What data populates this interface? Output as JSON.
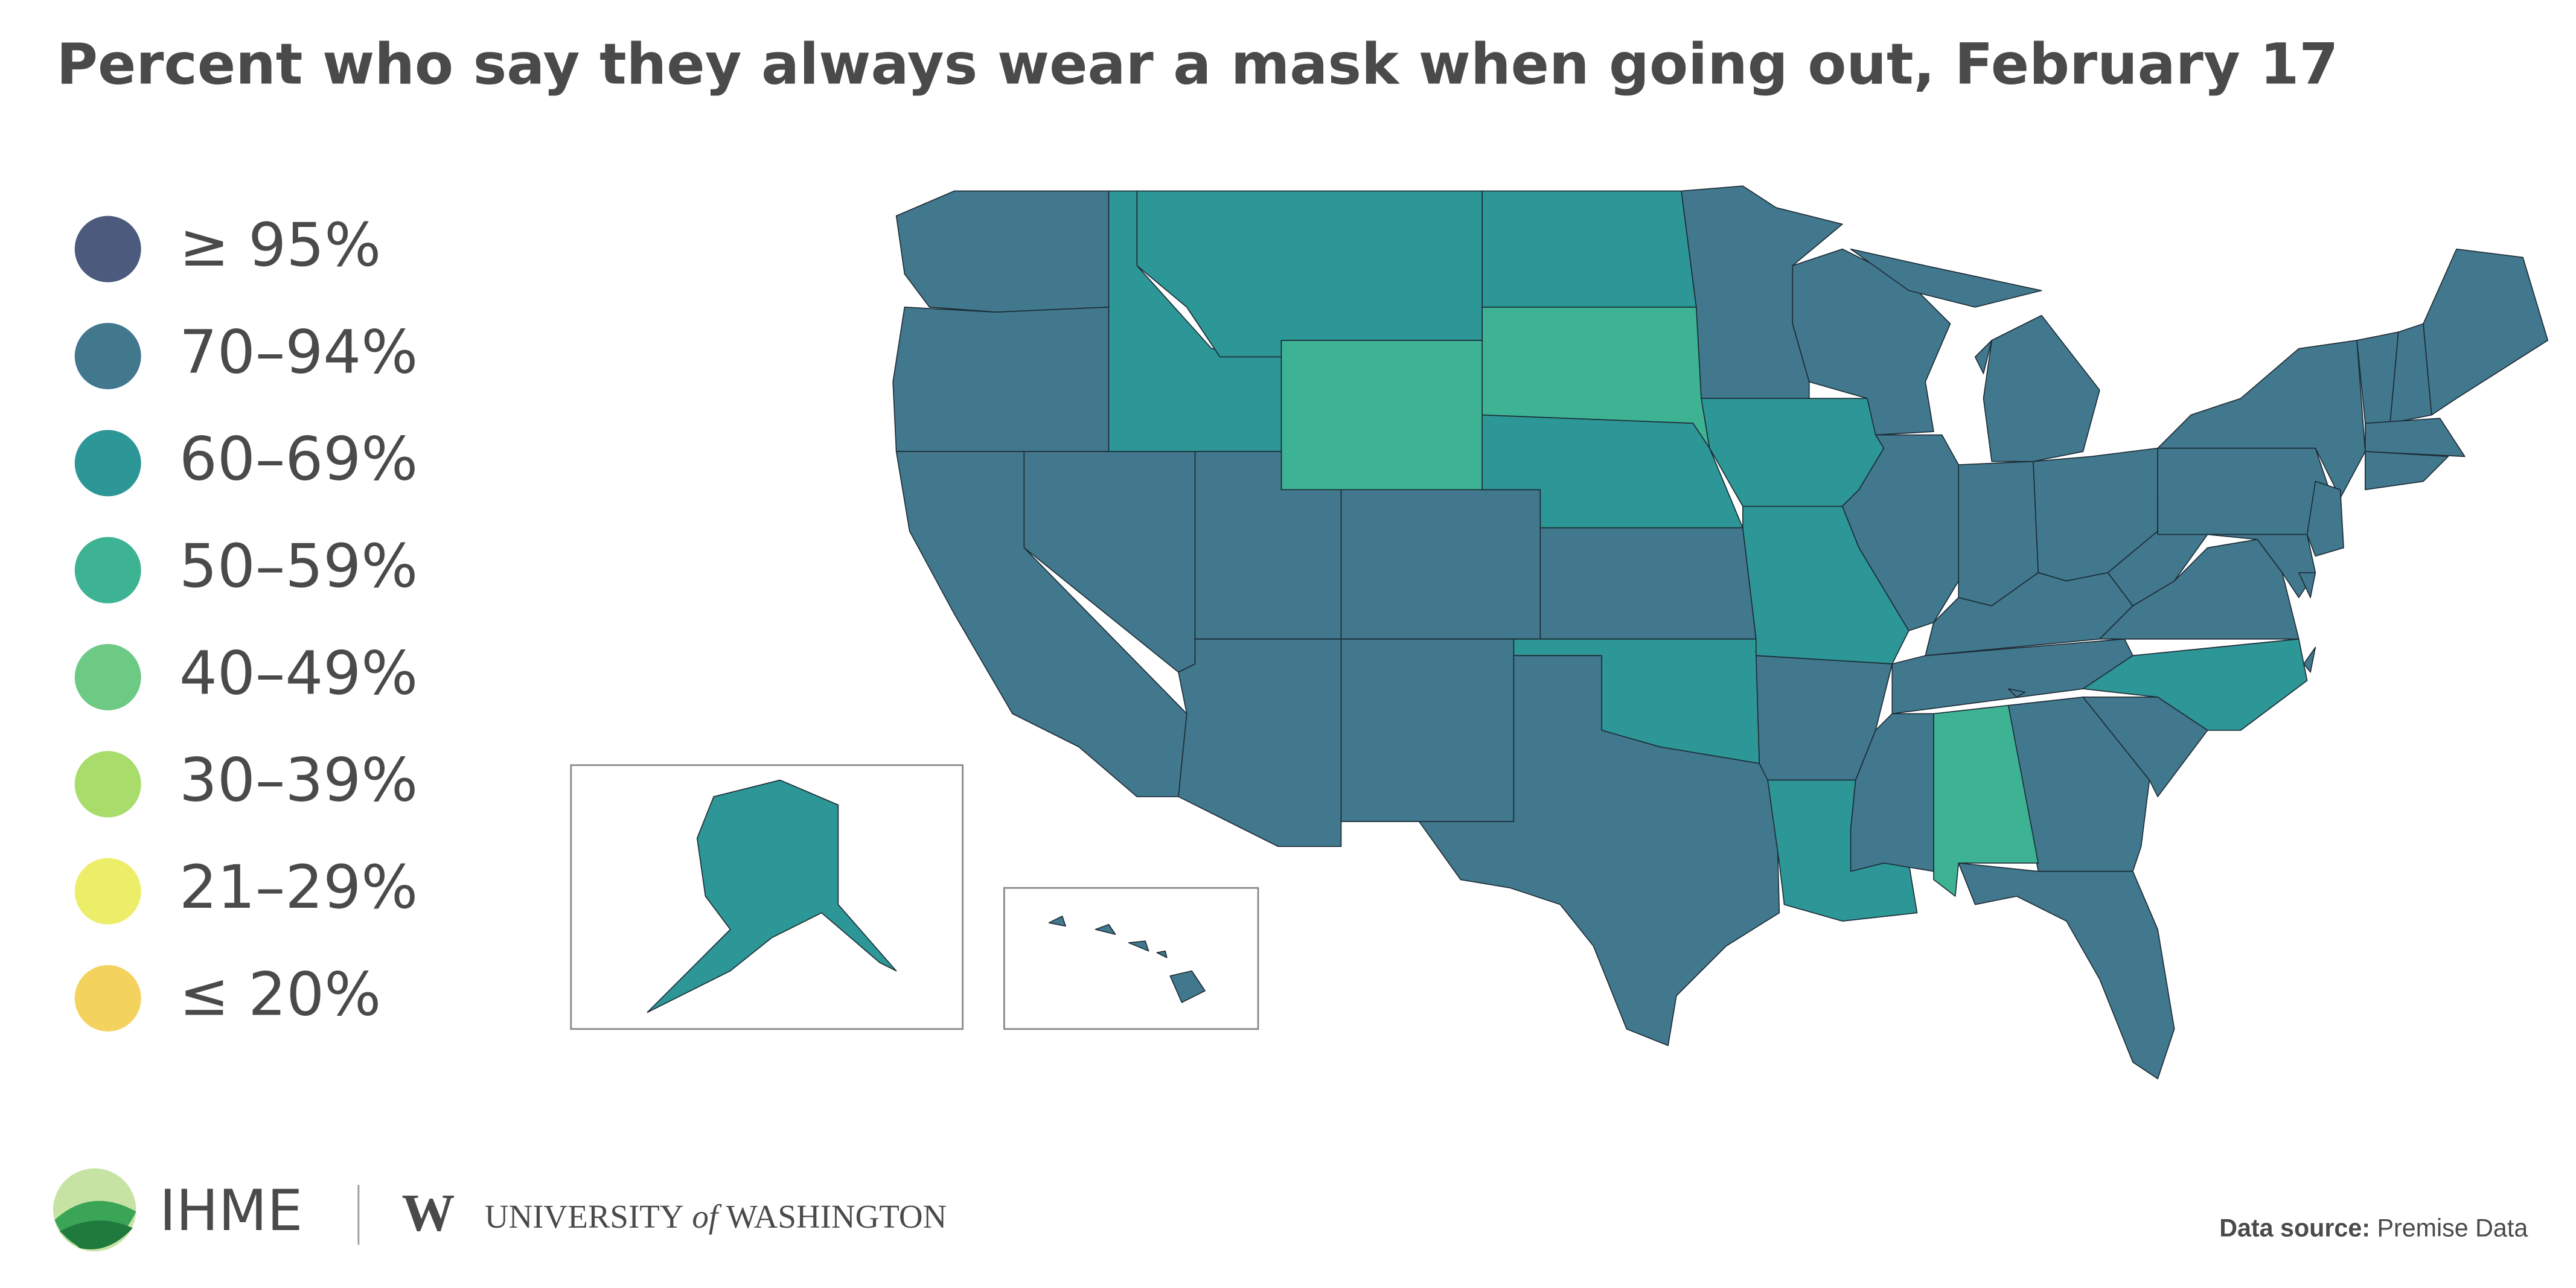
{
  "title": "Percent who say they always wear a mask when going out, February 17",
  "legend": [
    {
      "label": "≥ 95%",
      "color": "#4b5a7d"
    },
    {
      "label": "70–94%",
      "color": "#41788d"
    },
    {
      "label": "60–69%",
      "color": "#2d9696"
    },
    {
      "label": "50–59%",
      "color": "#3db394"
    },
    {
      "label": "40–49%",
      "color": "#6dca85"
    },
    {
      "label": "30–39%",
      "color": "#a8dc6b"
    },
    {
      "label": "21–29%",
      "color": "#ecee6a"
    },
    {
      "label": "≤ 20%",
      "color": "#f3d35d"
    }
  ],
  "map": {
    "regions": [
      1,
      1,
      1,
      1,
      2,
      2,
      3,
      1,
      1,
      1,
      1,
      2,
      3,
      2,
      1,
      2,
      1,
      1,
      2,
      2,
      1,
      1,
      2,
      1,
      1,
      1,
      1,
      1,
      1,
      1,
      1,
      1,
      1,
      1,
      3,
      2,
      1,
      1,
      1,
      1,
      1,
      1,
      1,
      1,
      1,
      1,
      1,
      1,
      1,
      1,
      1,
      2,
      1,
      1,
      1,
      1,
      1
    ]
  },
  "footer": {
    "org": "IHME",
    "university_a": "UNIVERSITY",
    "university_of": "of",
    "university_b": "WASHINGTON",
    "source_label": "Data source:",
    "source": "Premise Data"
  }
}
